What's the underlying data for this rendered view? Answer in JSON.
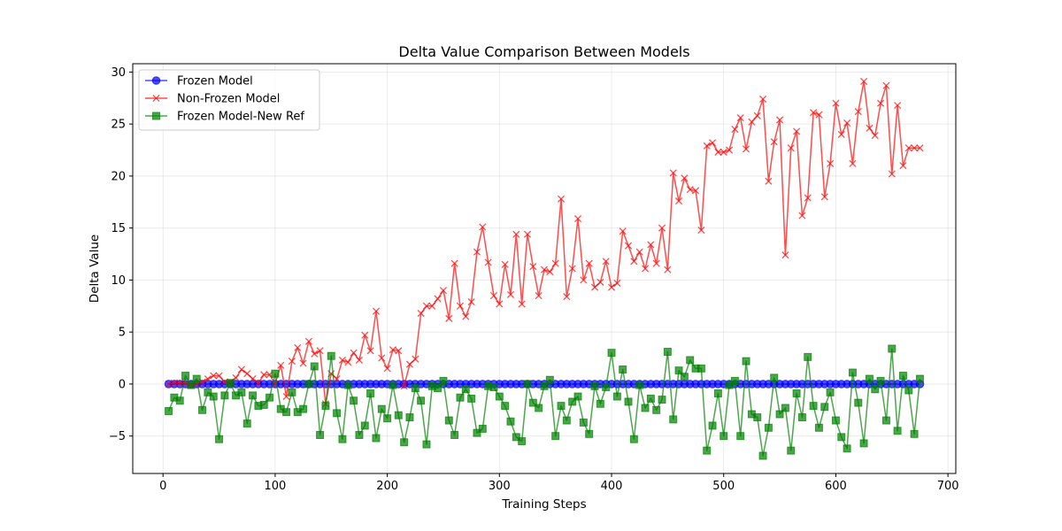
{
  "chart_data": {
    "type": "line",
    "title": "Delta Value Comparison Between Models",
    "xlabel": "Training Steps",
    "ylabel": "Delta Value",
    "xlim": [
      -27,
      707
    ],
    "ylim": [
      -8.6,
      30.8
    ],
    "xticks": [
      0,
      100,
      200,
      300,
      400,
      500,
      600,
      700
    ],
    "yticks": [
      -5,
      0,
      5,
      10,
      15,
      20,
      25,
      30
    ],
    "grid": true,
    "legend_position": "top-left",
    "x": [
      5,
      10,
      15,
      20,
      25,
      30,
      35,
      40,
      45,
      50,
      55,
      60,
      65,
      70,
      75,
      80,
      85,
      90,
      95,
      100,
      105,
      110,
      115,
      120,
      125,
      130,
      135,
      140,
      145,
      150,
      155,
      160,
      165,
      170,
      175,
      180,
      185,
      190,
      195,
      200,
      205,
      210,
      215,
      220,
      225,
      230,
      235,
      240,
      245,
      250,
      255,
      260,
      265,
      270,
      275,
      280,
      285,
      290,
      295,
      300,
      305,
      310,
      315,
      320,
      325,
      330,
      335,
      340,
      345,
      350,
      355,
      360,
      365,
      370,
      375,
      380,
      385,
      390,
      395,
      400,
      405,
      410,
      415,
      420,
      425,
      430,
      435,
      440,
      445,
      450,
      455,
      460,
      465,
      470,
      475,
      480,
      485,
      490,
      495,
      500,
      505,
      510,
      515,
      520,
      525,
      530,
      535,
      540,
      545,
      550,
      555,
      560,
      565,
      570,
      575,
      580,
      585,
      590,
      595,
      600,
      605,
      610,
      615,
      620,
      625,
      630,
      635,
      640,
      645,
      650,
      655,
      660,
      665,
      670,
      675
    ],
    "series": [
      {
        "name": "Frozen Model",
        "color": "#0000ff",
        "marker": "circle",
        "values": [
          0,
          0,
          0,
          0,
          0,
          0,
          0,
          0,
          0,
          0,
          0,
          0,
          0,
          0,
          0,
          0,
          0,
          0,
          0,
          0,
          0,
          0,
          0,
          0,
          0,
          0,
          0,
          0,
          0,
          0,
          0,
          0,
          0,
          0,
          0,
          0,
          0,
          0,
          0,
          0,
          0,
          0,
          0,
          0,
          0,
          0,
          0,
          0,
          0,
          0,
          0,
          0,
          0,
          0,
          0,
          0,
          0,
          0,
          0,
          0,
          0,
          0,
          0,
          0,
          0,
          0,
          0,
          0,
          0,
          0,
          0,
          0,
          0,
          0,
          0,
          0,
          0,
          0,
          0,
          0,
          0,
          0,
          0,
          0,
          0,
          0,
          0,
          0,
          0,
          0,
          0,
          0,
          0,
          0,
          0,
          0,
          0,
          0,
          0,
          0,
          0,
          0,
          0,
          0,
          0,
          0,
          0,
          0,
          0,
          0,
          0,
          0,
          0,
          0,
          0,
          0,
          0,
          0,
          0,
          0,
          0,
          0,
          0,
          0,
          0,
          0,
          0,
          0,
          0,
          0,
          0,
          0,
          0,
          0,
          0
        ]
      },
      {
        "name": "Non-Frozen Model",
        "color": "#ff0000",
        "marker": "x",
        "values": [
          0,
          0.1,
          0.1,
          0.1,
          -0.1,
          0,
          0.2,
          0.5,
          0.8,
          0.8,
          0.2,
          0.2,
          0.6,
          1.4,
          1.0,
          0.5,
          0.1,
          0.9,
          0.9,
          0,
          1.8,
          -1.2,
          2.2,
          3.5,
          2.0,
          4.1,
          2.9,
          3.2,
          -1.9,
          1.0,
          0.5,
          2.3,
          2.1,
          3.0,
          2.3,
          4.7,
          3.2,
          7.0,
          2.5,
          1.5,
          3.3,
          3.2,
          -0.2,
          1.9,
          2.4,
          6.8,
          7.5,
          7.5,
          8.2,
          9.0,
          6.3,
          11.6,
          7.5,
          6.5,
          7.9,
          12.7,
          15.1,
          11.7,
          8.5,
          7.7,
          11.5,
          8.6,
          14.4,
          7.7,
          14.4,
          11.3,
          8.5,
          11.0,
          10.8,
          11.6,
          17.8,
          8.4,
          11.1,
          15.9,
          10.0,
          11.6,
          9.3,
          9.8,
          11.8,
          9.3,
          9.7,
          14.7,
          13.3,
          11.8,
          12.7,
          11.1,
          13.4,
          11.6,
          15.0,
          11.0,
          20.3,
          17.6,
          19.8,
          18.7,
          18.6,
          14.8,
          22.9,
          23.2,
          22.3,
          22.3,
          22.5,
          24.5,
          25.6,
          22.6,
          25.2,
          25.8,
          27.4,
          19.5,
          23.3,
          25.4,
          12.4,
          22.7,
          24.3,
          16.2,
          17.9,
          26.1,
          25.9,
          18.0,
          21.2,
          27.0,
          24.0,
          25.1,
          21.2,
          26.2,
          29.1,
          24.6,
          23.9,
          27.0,
          28.7,
          20.2,
          26.8,
          21.0,
          22.7,
          22.7,
          22.7
        ]
      },
      {
        "name": "Frozen Model-New Ref",
        "color": "#008000",
        "marker": "square",
        "values": [
          -2.6,
          -1.3,
          -1.6,
          0.8,
          -0.1,
          0.5,
          -2.5,
          -0.8,
          -1.2,
          -5.3,
          -1.1,
          0.1,
          -1.1,
          -0.8,
          -3.8,
          -1.1,
          -2.1,
          -2.0,
          -1.3,
          1.0,
          -2.4,
          -2.7,
          -0.8,
          -2.7,
          -2.4,
          0.0,
          1.7,
          -4.9,
          -2.1,
          2.7,
          -2.8,
          -5.3,
          -0.1,
          -1.6,
          -4.9,
          -4.0,
          -0.9,
          -5.2,
          -2.4,
          -3.3,
          -0.1,
          -3.0,
          -5.6,
          -3.2,
          -0.4,
          -1.6,
          -5.8,
          -0.2,
          -0.4,
          0.3,
          -3.5,
          -4.9,
          -1.3,
          -0.5,
          -1.4,
          -4.7,
          -4.3,
          -0.2,
          -0.3,
          -1.2,
          -2.1,
          -3.6,
          -5.1,
          -5.5,
          0.0,
          -1.8,
          -2.3,
          -0.2,
          0.4,
          -5.0,
          -2.1,
          -3.5,
          -1.7,
          -1.2,
          -3.7,
          -4.8,
          -0.2,
          -1.9,
          -0.3,
          3.0,
          -1.2,
          1.4,
          -1.7,
          -5.3,
          -0.1,
          -2.3,
          -1.4,
          -2.5,
          -1.5,
          3.1,
          -3.4,
          1.3,
          0.7,
          2.3,
          1.5,
          1.5,
          -6.4,
          -4.0,
          -0.9,
          -5.0,
          -0.1,
          0.3,
          -5.0,
          2.2,
          -2.9,
          -3.2,
          -6.9,
          -4.2,
          0.6,
          -2.9,
          -2.3,
          -6.4,
          -0.9,
          -3.2,
          2.6,
          -2.1,
          -4.2,
          -2.2,
          -0.8,
          -3.5,
          -5.1,
          -6.2,
          1.1,
          -1.8,
          -5.7,
          0.5,
          -0.5,
          0.3,
          -3.5,
          3.4,
          -4.5,
          0.8,
          -0.6,
          -4.8,
          0.5
        ]
      }
    ]
  }
}
